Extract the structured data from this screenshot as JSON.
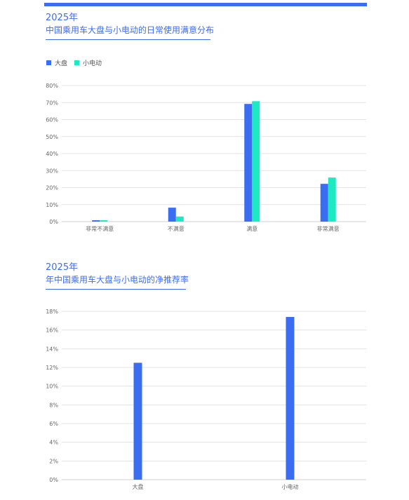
{
  "colors": {
    "accent": "#3a6df0",
    "series_1": "#3a6df0",
    "series_2": "#1de9c3",
    "grid": "#e3e3e3"
  },
  "chart_data": [
    {
      "type": "bar",
      "title_year": "2025年",
      "title": "中国乘用车大盘与小电动的日常使用满意分布",
      "categories": [
        "非常不满意",
        "不满意",
        "满意",
        "非常满意"
      ],
      "series": [
        {
          "name": "大盘",
          "values": [
            0.8,
            8.2,
            69.2,
            22.2
          ]
        },
        {
          "name": "小电动",
          "values": [
            0.8,
            3.0,
            70.8,
            25.9
          ]
        }
      ],
      "ylim": [
        0,
        80
      ],
      "yticks": [
        "0%",
        "10%",
        "20%",
        "30%",
        "40%",
        "50%",
        "60%",
        "70%",
        "80%"
      ],
      "grid": true,
      "legend_position": "top-left"
    },
    {
      "type": "bar",
      "title_year": "2025年",
      "title": "年中国乘用车大盘与小电动的净推荐率",
      "categories": [
        "大盘",
        "小电动"
      ],
      "series": [
        {
          "values": [
            12.5,
            17.4
          ]
        }
      ],
      "ylim": [
        0,
        18
      ],
      "yticks": [
        "0%",
        "2%",
        "4%",
        "6%",
        "8%",
        "10%",
        "12%",
        "14%",
        "16%",
        "18%"
      ],
      "grid": true
    }
  ]
}
